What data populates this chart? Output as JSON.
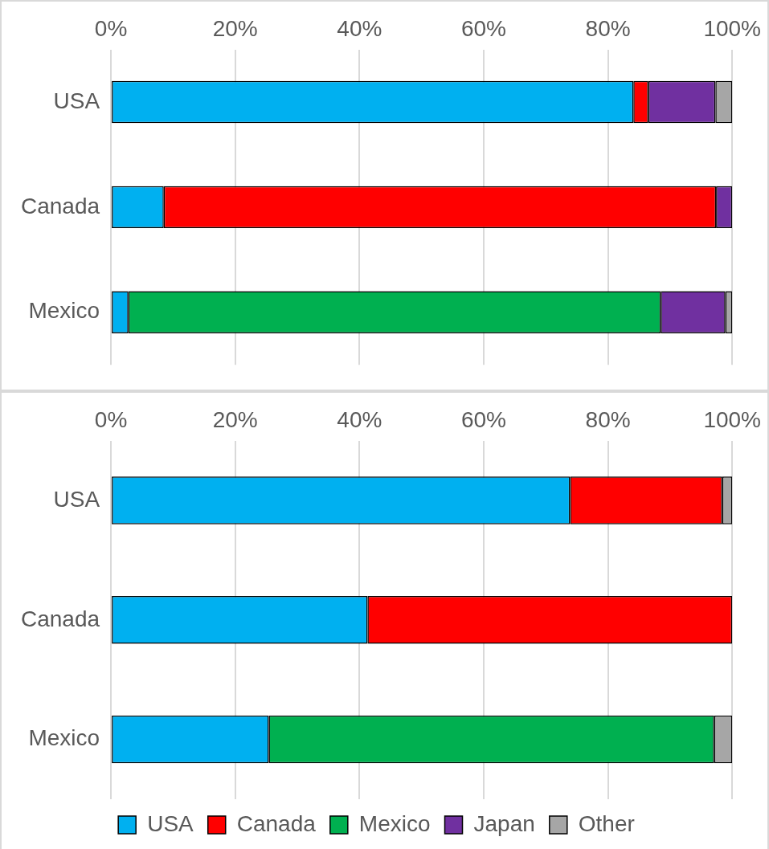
{
  "chart_data": [
    {
      "type": "bar",
      "orientation": "horizontal",
      "stacked": true,
      "categories": [
        "USA",
        "Canada",
        "Mexico"
      ],
      "xlim": [
        0,
        100
      ],
      "xticks": [
        {
          "value": 0,
          "label": "0%"
        },
        {
          "value": 20,
          "label": "20%"
        },
        {
          "value": 40,
          "label": "40%"
        },
        {
          "value": 60,
          "label": "60%"
        },
        {
          "value": 80,
          "label": "80%"
        },
        {
          "value": 100,
          "label": "100%"
        }
      ],
      "grid": "x",
      "legend": false,
      "series": [
        {
          "color": "#00b0f0",
          "values": [
            84.1,
            8.5,
            2.8
          ]
        },
        {
          "color": "#ff0000",
          "values": [
            2.4,
            88.9,
            null
          ]
        },
        {
          "color": "#00b050",
          "values": [
            null,
            null,
            85.7
          ]
        },
        {
          "color": "#7030a0",
          "values": [
            10.8,
            2.6,
            10.4
          ]
        },
        {
          "color": "#a6a6a6",
          "values": [
            2.7,
            null,
            1.1
          ]
        }
      ]
    },
    {
      "type": "bar",
      "orientation": "horizontal",
      "stacked": true,
      "categories": [
        "USA",
        "Canada",
        "Mexico"
      ],
      "xlim": [
        0,
        100
      ],
      "xticks": [
        {
          "value": 0,
          "label": "0%"
        },
        {
          "value": 20,
          "label": "20%"
        },
        {
          "value": 40,
          "label": "40%"
        },
        {
          "value": 60,
          "label": "60%"
        },
        {
          "value": 80,
          "label": "80%"
        },
        {
          "value": 100,
          "label": "100%"
        }
      ],
      "grid": "x",
      "legend": "bottom",
      "series": [
        {
          "name": "USA",
          "color": "#00b0f0",
          "values": [
            73.9,
            41.3,
            25.4
          ]
        },
        {
          "name": "Canada",
          "color": "#ff0000",
          "values": [
            24.5,
            58.7,
            null
          ]
        },
        {
          "name": "Mexico",
          "color": "#00b050",
          "values": [
            null,
            null,
            71.7
          ]
        },
        {
          "name": "Japan",
          "color": "#7030a0",
          "values": [
            null,
            null,
            null
          ]
        },
        {
          "name": "Other",
          "color": "#a6a6a6",
          "values": [
            1.6,
            null,
            2.9
          ]
        }
      ]
    }
  ]
}
